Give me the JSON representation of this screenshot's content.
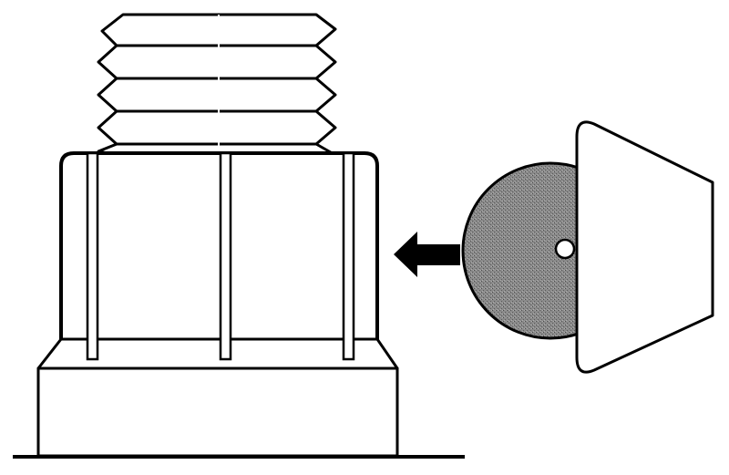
{
  "colors": {
    "background": "#ffffff",
    "stroke": "#000000",
    "disc_fill": "#777777"
  },
  "icons": {
    "arrow": "arrow-left-icon"
  }
}
